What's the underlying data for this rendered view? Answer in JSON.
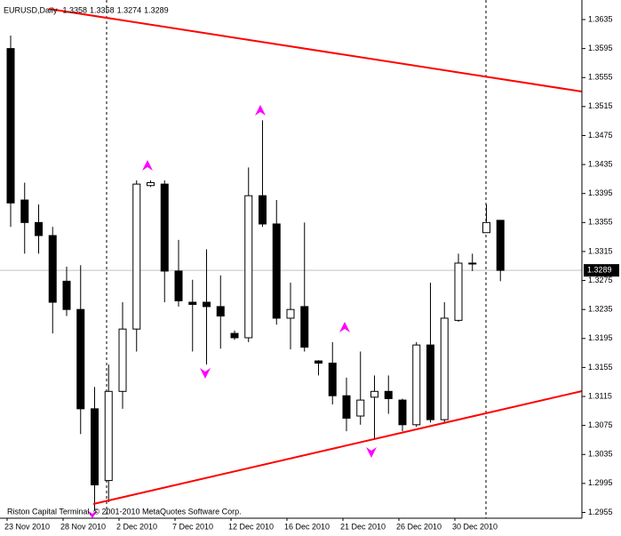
{
  "chart_data": {
    "type": "candlestick",
    "title": "EURUSD,Daily",
    "header_values": [
      1.3358,
      1.3358,
      1.3274,
      1.3289
    ],
    "footer": "Riston Capital Terminal, © 2001-2010 MetaQuotes Software Corp.",
    "categories": [
      "23 Nov 2010",
      null,
      null,
      null,
      "28 Nov 2010",
      null,
      null,
      null,
      "2 Dec 2010",
      null,
      null,
      null,
      "7 Dec 2010",
      null,
      null,
      null,
      "12 Dec 2010",
      null,
      null,
      null,
      "16 Dec 2010",
      null,
      null,
      null,
      "21 Dec 2010",
      null,
      null,
      null,
      "26 Dec 2010",
      null,
      null,
      null,
      "30 Dec 2010",
      null,
      null,
      null
    ],
    "open": [
      1.3595,
      1.3386,
      1.3355,
      1.3337,
      1.3274,
      1.3235,
      1.3098,
      1.2999,
      1.3122,
      1.3208,
      1.3406,
      1.3408,
      1.3288,
      1.3245,
      1.3245,
      1.3239,
      1.3202,
      1.3196,
      1.3392,
      1.3353,
      1.3223,
      1.3239,
      1.3164,
      1.3161,
      1.3116,
      1.3088,
      1.3114,
      1.3122,
      1.311,
      1.3076,
      1.3186,
      1.3083,
      1.322,
      1.3299,
      1.3341,
      1.3358
    ],
    "high": [
      1.3613,
      1.341,
      1.338,
      1.3349,
      1.3294,
      1.3296,
      1.3128,
      1.3159,
      1.3245,
      1.3413,
      1.3413,
      1.3413,
      1.3331,
      1.3276,
      1.3318,
      1.3282,
      1.3206,
      1.3431,
      1.3496,
      1.3386,
      1.3272,
      1.3355,
      1.3165,
      1.319,
      1.3141,
      1.3177,
      1.3144,
      1.3144,
      1.3112,
      1.319,
      1.3272,
      1.3245,
      1.3312,
      1.3312,
      1.338,
      1.3358
    ],
    "low": [
      1.3349,
      1.3312,
      1.3312,
      1.3202,
      1.3226,
      1.3063,
      1.2957,
      1.2969,
      1.3098,
      1.3177,
      1.3404,
      1.3245,
      1.3239,
      1.3177,
      1.3159,
      1.3181,
      1.3193,
      1.319,
      1.3349,
      1.3214,
      1.318,
      1.3177,
      1.3144,
      1.3104,
      1.3067,
      1.3076,
      1.3055,
      1.3091,
      1.3067,
      1.3073,
      1.3079,
      1.3079,
      1.3218,
      1.3288,
      1.3341,
      1.3274
    ],
    "close": [
      1.3382,
      1.3355,
      1.3337,
      1.3245,
      1.3235,
      1.3098,
      1.2993,
      1.3122,
      1.3208,
      1.3408,
      1.341,
      1.3288,
      1.3247,
      1.3242,
      1.3239,
      1.3226,
      1.3196,
      1.3392,
      1.3353,
      1.3223,
      1.3235,
      1.3183,
      1.3161,
      1.3116,
      1.3085,
      1.311,
      1.3122,
      1.3112,
      1.3076,
      1.3186,
      1.3083,
      1.3223,
      1.3299,
      1.3299,
      1.3355,
      1.3289
    ],
    "up_color": "#ffffff",
    "down_color": "#000000",
    "ylim": [
      1.2947,
      1.3662
    ],
    "yticks": [
      1.3635,
      1.3595,
      1.3555,
      1.3515,
      1.3475,
      1.3435,
      1.3395,
      1.3355,
      1.3315,
      1.3275,
      1.3235,
      1.3195,
      1.3155,
      1.3115,
      1.3075,
      1.3035,
      1.2995,
      1.2955
    ],
    "last_price": 1.3289
  }
}
